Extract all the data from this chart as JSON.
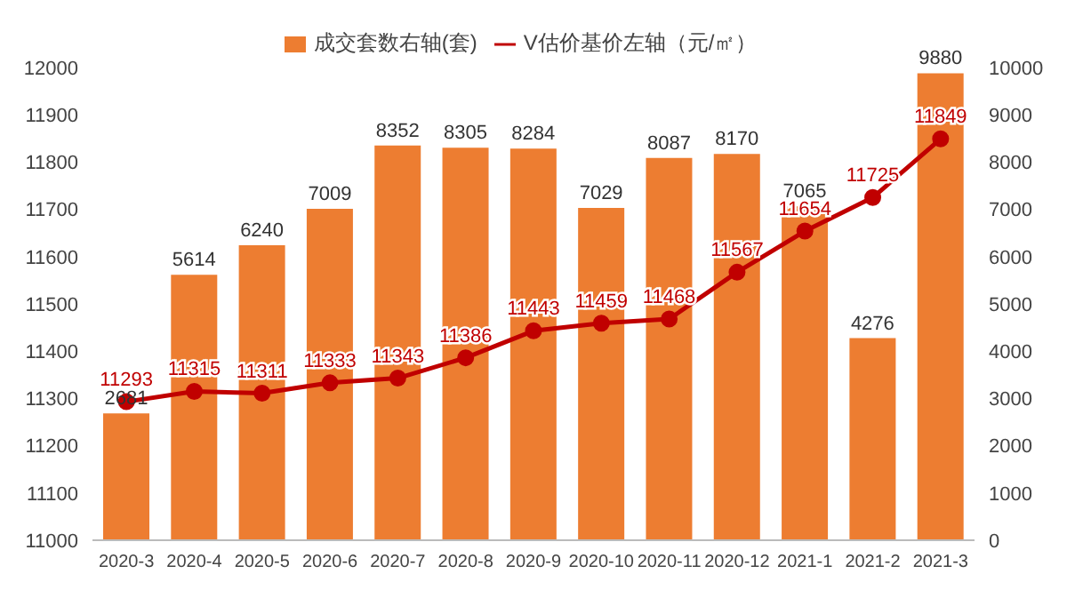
{
  "chart_data": {
    "type": "bar",
    "categories": [
      "2020-3",
      "2020-4",
      "2020-5",
      "2020-6",
      "2020-7",
      "2020-8",
      "2020-9",
      "2020-10",
      "2020-11",
      "2020-12",
      "2021-1",
      "2021-2",
      "2021-3"
    ],
    "series": [
      {
        "name": "成交套数右轴(套)",
        "axis": "y2",
        "color": "#ed7d31",
        "values": [
          2681,
          5614,
          6240,
          7009,
          8352,
          8305,
          8284,
          7029,
          8087,
          8170,
          7065,
          4276,
          9880
        ]
      },
      {
        "name": "V估价基价左轴（元/㎡）",
        "type": "line",
        "color": "#c00000",
        "values": [
          11293,
          11315,
          11311,
          11333,
          11343,
          11386,
          11443,
          11459,
          11468,
          11567,
          11654,
          11725,
          11849
        ]
      }
    ],
    "ylim": [
      11000,
      12000
    ],
    "yticks": [
      11000,
      11100,
      11200,
      11300,
      11400,
      11500,
      11600,
      11700,
      11800,
      11900,
      12000
    ],
    "y2lim": [
      0,
      10000
    ],
    "y2ticks": [
      0,
      1000,
      2000,
      3000,
      4000,
      5000,
      6000,
      7000,
      8000,
      9000,
      10000
    ],
    "data_labels": true,
    "legend": "top",
    "marker": "circle"
  }
}
